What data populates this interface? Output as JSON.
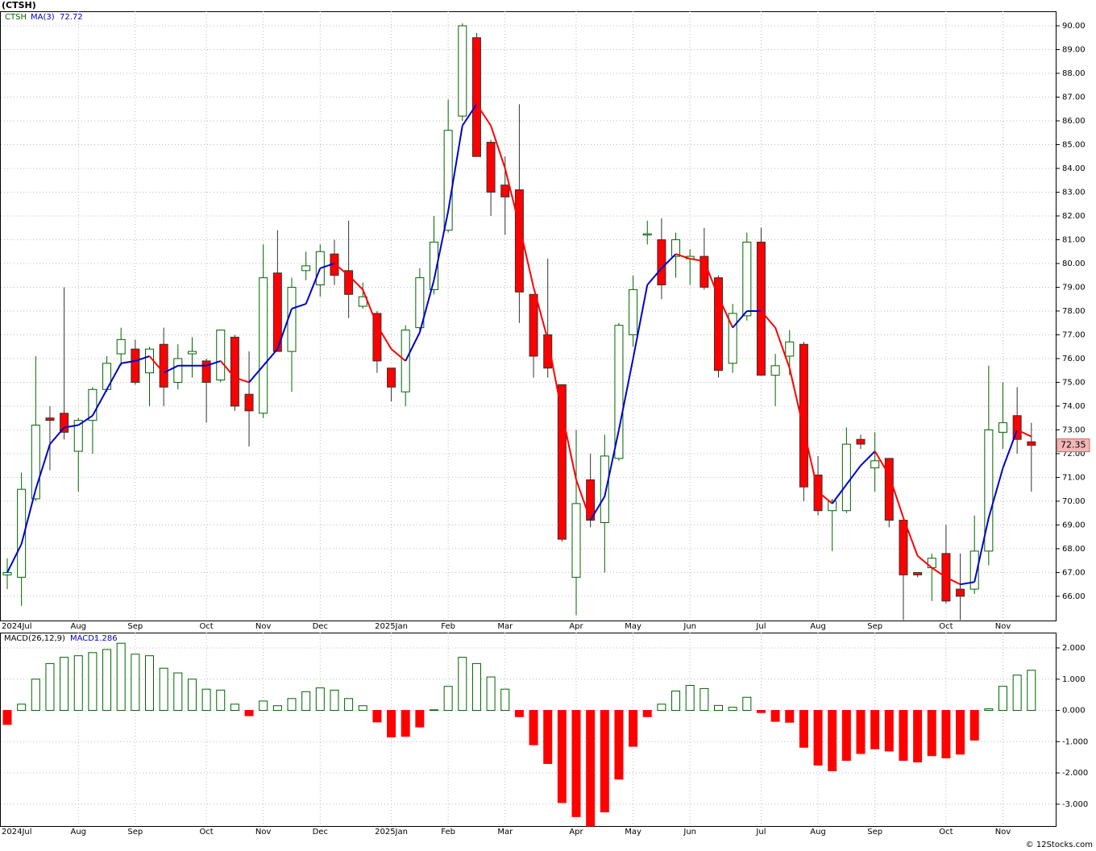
{
  "chart_data": [
    {
      "type": "candlestick",
      "title": "(CTSH)",
      "symbol": "CTSH",
      "categories": [
        "2024Jul",
        null,
        null,
        null,
        null,
        "Aug",
        null,
        null,
        null,
        "Sep",
        null,
        null,
        null,
        null,
        "Oct",
        null,
        null,
        null,
        "Nov",
        null,
        null,
        null,
        "Dec",
        null,
        null,
        null,
        null,
        "2025Jan",
        null,
        null,
        null,
        "Feb",
        null,
        null,
        null,
        "Mar",
        null,
        null,
        null,
        null,
        "Apr",
        null,
        null,
        null,
        "May",
        null,
        null,
        null,
        "Jun",
        null,
        null,
        null,
        null,
        "Jul",
        null,
        null,
        null,
        "Aug",
        null,
        null,
        null,
        "Sep",
        null,
        null,
        null,
        null,
        "Oct",
        null,
        null,
        null,
        "Nov",
        null,
        null
      ],
      "open": [
        66.9,
        66.8,
        70.1,
        73.5,
        73.7,
        72.1,
        73.4,
        74.7,
        76.2,
        76.4,
        75.4,
        76.6,
        75.0,
        76.2,
        75.9,
        75.1,
        76.9,
        74.5,
        73.7,
        79.6,
        76.3,
        79.7,
        79.1,
        80.4,
        79.7,
        78.2,
        77.9,
        75.6,
        74.6,
        77.3,
        78.9,
        81.4,
        86.2,
        89.5,
        85.1,
        83.3,
        83.1,
        78.7,
        77.0,
        74.9,
        66.8,
        70.9,
        69.1,
        71.8,
        77.0,
        81.2,
        81.0,
        80.3,
        80.2,
        80.3,
        79.4,
        75.8,
        77.8,
        80.9,
        75.3,
        76.1,
        76.6,
        71.1,
        69.6,
        69.6,
        72.6,
        71.4,
        71.8,
        69.2,
        67.0,
        67.2,
        67.8,
        66.3,
        66.3,
        67.9,
        72.9,
        73.6,
        72.5
      ],
      "high": [
        67.6,
        71.2,
        76.1,
        74.0,
        79.0,
        73.5,
        74.8,
        76.1,
        77.3,
        76.8,
        76.5,
        77.3,
        76.6,
        76.9,
        76.0,
        77.2,
        77.0,
        76.3,
        80.8,
        81.4,
        79.4,
        80.5,
        80.8,
        81.0,
        81.8,
        79.2,
        78.0,
        75.6,
        77.4,
        79.8,
        82.0,
        86.9,
        90.1,
        89.7,
        85.2,
        84.5,
        86.7,
        78.7,
        80.2,
        74.9,
        73.0,
        72.0,
        72.8,
        77.5,
        79.5,
        81.8,
        81.9,
        81.3,
        80.6,
        81.5,
        79.5,
        78.3,
        81.3,
        81.5,
        76.2,
        77.2,
        76.7,
        71.9,
        70.1,
        73.1,
        72.8,
        72.9,
        71.8,
        69.2,
        67.0,
        67.8,
        69.0,
        67.8,
        69.4,
        75.7,
        75.0,
        74.8,
        73.3
      ],
      "low": [
        66.3,
        65.6,
        70.0,
        71.3,
        72.6,
        70.4,
        72.0,
        74.6,
        75.7,
        74.9,
        74.0,
        74.0,
        74.7,
        75.2,
        73.3,
        75.0,
        73.8,
        72.3,
        73.5,
        76.3,
        74.6,
        79.3,
        78.6,
        79.1,
        77.7,
        78.1,
        75.4,
        74.2,
        74.0,
        77.1,
        78.7,
        81.3,
        86.0,
        84.5,
        82.0,
        81.2,
        77.5,
        75.2,
        75.2,
        68.3,
        65.2,
        68.9,
        67.0,
        71.7,
        76.5,
        80.8,
        78.5,
        79.4,
        79.1,
        78.9,
        75.2,
        75.4,
        77.6,
        75.3,
        74.0,
        75.3,
        70.0,
        69.4,
        67.9,
        69.5,
        72.2,
        70.4,
        68.9,
        65.0,
        66.8,
        65.8,
        65.7,
        65.0,
        66.1,
        67.3,
        72.2,
        72.0,
        70.4
      ],
      "close": [
        67.0,
        70.5,
        73.2,
        73.4,
        72.9,
        73.4,
        74.7,
        75.8,
        76.8,
        75.0,
        76.4,
        74.8,
        76.0,
        76.3,
        75.0,
        77.2,
        74.0,
        73.8,
        79.4,
        76.3,
        79.0,
        79.9,
        80.5,
        79.5,
        78.7,
        78.6,
        75.9,
        74.8,
        77.2,
        79.4,
        80.9,
        85.6,
        90.0,
        84.5,
        83.0,
        82.8,
        78.8,
        76.1,
        75.6,
        68.4,
        69.9,
        69.2,
        71.9,
        77.4,
        78.9,
        81.25,
        79.1,
        81.0,
        80.3,
        79.0,
        75.5,
        77.9,
        80.9,
        75.3,
        75.7,
        76.7,
        70.6,
        69.6,
        70.0,
        72.4,
        72.4,
        71.7,
        69.2,
        66.9,
        66.9,
        67.6,
        65.8,
        66.0,
        67.9,
        73.0,
        73.3,
        72.6,
        72.35
      ],
      "up_color": "#006400",
      "down_color": "#ff0000",
      "ma": {
        "name": "MA(3)",
        "up_color": "#0000cc",
        "down_color": "#ff0000",
        "values": [
          67.0,
          68.2,
          70.5,
          72.4,
          73.1,
          73.2,
          73.6,
          74.7,
          75.8,
          75.9,
          76.1,
          75.4,
          75.7,
          75.7,
          75.7,
          75.9,
          75.2,
          75.0,
          75.7,
          76.4,
          78.1,
          78.3,
          79.8,
          80.0,
          79.5,
          78.9,
          77.4,
          76.4,
          75.9,
          77.1,
          79.3,
          82.2,
          85.8,
          86.7,
          85.8,
          84.0,
          81.6,
          79.0,
          76.8,
          73.7,
          70.9,
          69.2,
          70.2,
          73.0,
          76.0,
          79.1,
          79.8,
          80.4,
          80.2,
          80.1,
          78.6,
          77.3,
          78.0,
          78.0,
          77.3,
          75.6,
          73.0,
          70.4,
          69.9,
          70.7,
          71.5,
          72.1,
          71.1,
          69.3,
          67.7,
          67.2,
          66.8,
          66.5,
          66.6,
          69.3,
          71.4,
          73.0,
          72.72
        ]
      },
      "ylim": [
        64.98,
        90.61
      ],
      "yticks": [
        {
          "value": 66,
          "label": "66.00"
        },
        {
          "value": 67,
          "label": "67.00"
        },
        {
          "value": 68,
          "label": "68.00"
        },
        {
          "value": 69,
          "label": "69.00"
        },
        {
          "value": 70,
          "label": "70.00"
        },
        {
          "value": 71,
          "label": "71.00"
        },
        {
          "value": 72,
          "label": "72.00"
        },
        {
          "value": 73,
          "label": "73.00"
        },
        {
          "value": 74,
          "label": "74.00"
        },
        {
          "value": 75,
          "label": "75.00"
        },
        {
          "value": 76,
          "label": "76.00"
        },
        {
          "value": 77,
          "label": "77.00"
        },
        {
          "value": 78,
          "label": "78.00"
        },
        {
          "value": 79,
          "label": "79.00"
        },
        {
          "value": 80,
          "label": "80.00"
        },
        {
          "value": 81,
          "label": "81.00"
        },
        {
          "value": 82,
          "label": "82.00"
        },
        {
          "value": 83,
          "label": "83.00"
        },
        {
          "value": 84,
          "label": "84.00"
        },
        {
          "value": 85,
          "label": "85.00"
        },
        {
          "value": 86,
          "label": "86.00"
        },
        {
          "value": 87,
          "label": "87.00"
        },
        {
          "value": 88,
          "label": "88.00"
        },
        {
          "value": 89,
          "label": "89.00"
        },
        {
          "value": 90,
          "label": "90.00"
        }
      ],
      "grid": true,
      "footer": "© 12Stocks.com"
    },
    {
      "type": "bar",
      "name": "MACD(26,12,9)",
      "value_prefix": "MACD:",
      "categories": [
        "2024Jul",
        null,
        null,
        null,
        null,
        "Aug",
        null,
        null,
        null,
        "Sep",
        null,
        null,
        null,
        null,
        "Oct",
        null,
        null,
        null,
        "Nov",
        null,
        null,
        null,
        "Dec",
        null,
        null,
        null,
        null,
        "2025Jan",
        null,
        null,
        null,
        "Feb",
        null,
        null,
        null,
        "Mar",
        null,
        null,
        null,
        null,
        "Apr",
        null,
        null,
        null,
        "May",
        null,
        null,
        null,
        "Jun",
        null,
        null,
        null,
        null,
        "Jul",
        null,
        null,
        null,
        "Aug",
        null,
        null,
        null,
        "Sep",
        null,
        null,
        null,
        null,
        "Oct",
        null,
        null,
        null,
        "Nov",
        null,
        null
      ],
      "values": [
        -0.45,
        0.2,
        1.0,
        1.5,
        1.7,
        1.75,
        1.85,
        1.95,
        2.15,
        1.8,
        1.75,
        1.35,
        1.2,
        1.0,
        0.68,
        0.65,
        0.2,
        -0.17,
        0.3,
        0.15,
        0.38,
        0.6,
        0.72,
        0.65,
        0.38,
        0.15,
        -0.37,
        -0.85,
        -0.83,
        -0.53,
        0.02,
        0.77,
        1.7,
        1.5,
        1.07,
        0.68,
        -0.2,
        -1.1,
        -1.7,
        -2.95,
        -3.4,
        -3.7,
        -3.25,
        -2.2,
        -1.15,
        -0.2,
        0.2,
        0.62,
        0.8,
        0.7,
        0.16,
        0.1,
        0.42,
        -0.07,
        -0.35,
        -0.38,
        -1.18,
        -1.75,
        -1.93,
        -1.6,
        -1.38,
        -1.23,
        -1.3,
        -1.6,
        -1.65,
        -1.45,
        -1.52,
        -1.4,
        -0.95,
        0.05,
        0.77,
        1.13,
        1.286
      ],
      "up_color": "#006400",
      "down_color": "#ff0000",
      "ylim": [
        -3.7,
        2.49
      ],
      "yticks": [
        {
          "value": 2,
          "label": "2.000"
        },
        {
          "value": 1,
          "label": "1.000"
        },
        {
          "value": 0,
          "label": "0.000"
        },
        {
          "value": -1,
          "label": "-1.000"
        },
        {
          "value": -2,
          "label": "-2.000"
        },
        {
          "value": -3,
          "label": "-3.000"
        }
      ],
      "grid": true
    }
  ]
}
